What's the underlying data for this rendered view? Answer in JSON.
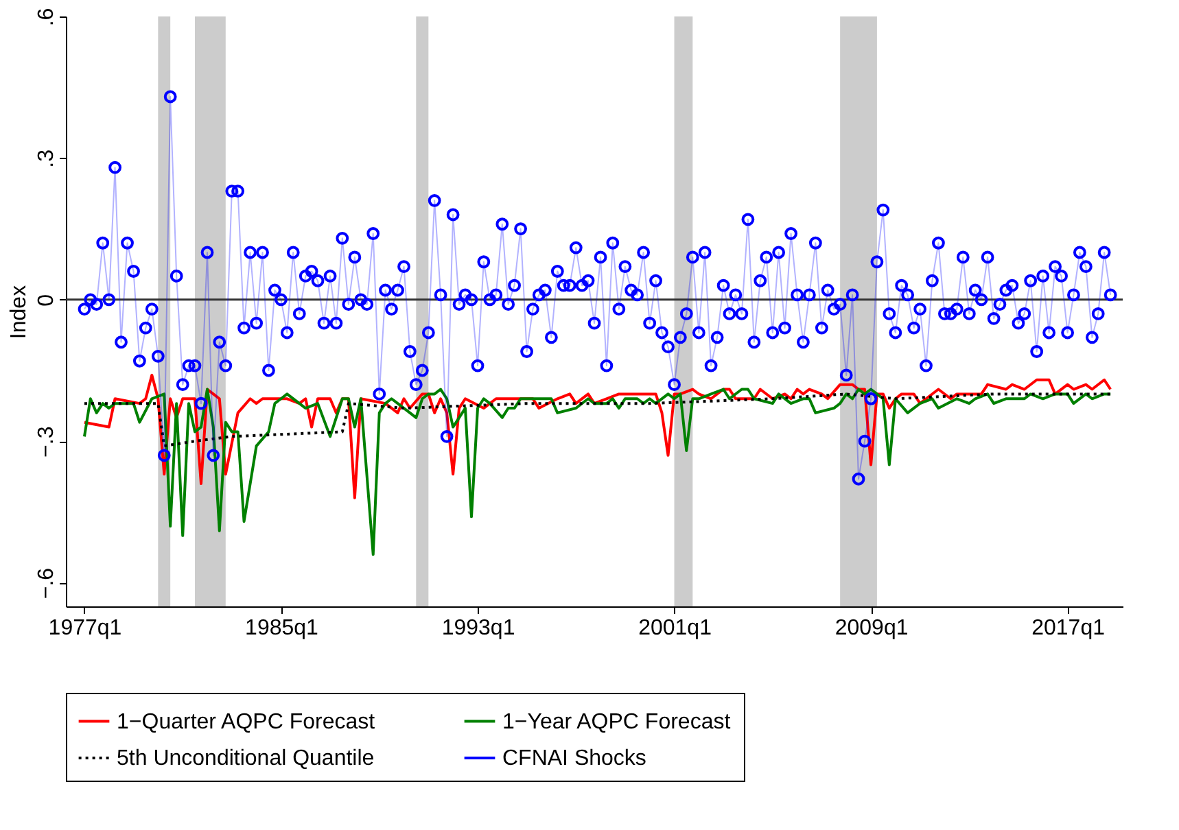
{
  "chart_data": {
    "type": "line",
    "ylabel": "Index",
    "xlim": [
      "1976-04",
      "2019-04"
    ],
    "ylim": [
      -0.65,
      0.6
    ],
    "xticks": [
      {
        "value": "1977-01",
        "label": "1977q1"
      },
      {
        "value": "1985-01",
        "label": "1985q1"
      },
      {
        "value": "1993-01",
        "label": "1993q1"
      },
      {
        "value": "2001-01",
        "label": "2001q1"
      },
      {
        "value": "2009-01",
        "label": "2009q1"
      },
      {
        "value": "2017-01",
        "label": "2017q1"
      }
    ],
    "yticks": [
      {
        "value": -0.6,
        "label": "−.6"
      },
      {
        "value": -0.3,
        "label": "−.3"
      },
      0,
      {
        "value": 0.3,
        "label": ".3"
      },
      {
        "value": 0.6,
        "label": ".6"
      }
    ],
    "grid": false,
    "legend": "bottom",
    "bands": [
      {
        "axis": "x",
        "from": "1980-01",
        "to": "1980-07",
        "color": "#cccccc"
      },
      {
        "axis": "x",
        "from": "1981-07",
        "to": "1982-10",
        "color": "#cccccc"
      },
      {
        "axis": "x",
        "from": "1990-07",
        "to": "1991-01",
        "color": "#cccccc"
      },
      {
        "axis": "x",
        "from": "2001-01",
        "to": "2001-10",
        "color": "#cccccc"
      },
      {
        "axis": "x",
        "from": "2007-10",
        "to": "2009-04",
        "color": "#cccccc"
      }
    ],
    "ref_lines": [
      {
        "axis": "y",
        "value": 0,
        "color": "#333333"
      }
    ],
    "series": [
      {
        "name": "1−Quarter AQPC Forecast",
        "type": "line",
        "color": "#ff0000",
        "x": [
          "1977-01",
          "1978-01",
          "1978-04",
          "1979-04",
          "1979-07",
          "1979-10",
          "1980-01",
          "1980-04",
          "1980-07",
          "1980-10",
          "1981-01",
          "1981-07",
          "1981-10",
          "1982-01",
          "1982-04",
          "1982-07",
          "1982-10",
          "1983-04",
          "1983-10",
          "1984-01",
          "1984-04",
          "1985-04",
          "1985-10",
          "1986-01",
          "1986-04",
          "1986-07",
          "1987-01",
          "1987-04",
          "1987-07",
          "1987-10",
          "1988-01",
          "1988-04",
          "1989-04",
          "1989-10",
          "1990-01",
          "1990-04",
          "1990-10",
          "1991-01",
          "1991-04",
          "1991-07",
          "1991-10",
          "1992-01",
          "1992-04",
          "1992-07",
          "1993-04",
          "1993-10",
          "1994-04",
          "1995-04",
          "1995-07",
          "1996-04",
          "1996-10",
          "1997-01",
          "1997-07",
          "1997-10",
          "1998-04",
          "1998-10",
          "1999-04",
          "1999-10",
          "2000-04",
          "2000-07",
          "2000-10",
          "2001-01",
          "2001-04",
          "2001-10",
          "2002-01",
          "2002-07",
          "2003-01",
          "2003-04",
          "2003-07",
          "2004-04",
          "2004-07",
          "2005-01",
          "2005-07",
          "2005-10",
          "2006-01",
          "2006-04",
          "2006-07",
          "2007-01",
          "2007-04",
          "2007-10",
          "2008-04",
          "2008-07",
          "2008-10",
          "2009-01",
          "2009-04",
          "2009-07",
          "2009-10",
          "2010-01",
          "2010-04",
          "2010-10",
          "2011-01",
          "2011-04",
          "2011-10",
          "2012-04",
          "2012-07",
          "2013-01",
          "2013-04",
          "2013-07",
          "2013-10",
          "2014-07",
          "2014-10",
          "2015-04",
          "2015-10",
          "2016-04",
          "2016-07",
          "2017-01",
          "2017-04",
          "2017-10",
          "2018-01",
          "2018-07",
          "2018-10"
        ],
        "values": [
          -0.26,
          -0.27,
          -0.21,
          -0.22,
          -0.21,
          -0.16,
          -0.21,
          -0.37,
          -0.21,
          -0.25,
          -0.21,
          -0.21,
          -0.39,
          -0.19,
          -0.2,
          -0.21,
          -0.37,
          -0.24,
          -0.21,
          -0.22,
          -0.21,
          -0.21,
          -0.22,
          -0.21,
          -0.27,
          -0.21,
          -0.21,
          -0.24,
          -0.21,
          -0.21,
          -0.42,
          -0.21,
          -0.22,
          -0.24,
          -0.21,
          -0.23,
          -0.2,
          -0.2,
          -0.24,
          -0.21,
          -0.24,
          -0.37,
          -0.23,
          -0.21,
          -0.23,
          -0.21,
          -0.21,
          -0.21,
          -0.23,
          -0.21,
          -0.2,
          -0.22,
          -0.2,
          -0.22,
          -0.21,
          -0.2,
          -0.2,
          -0.2,
          -0.2,
          -0.24,
          -0.33,
          -0.2,
          -0.2,
          -0.19,
          -0.2,
          -0.21,
          -0.19,
          -0.19,
          -0.21,
          -0.21,
          -0.19,
          -0.21,
          -0.2,
          -0.21,
          -0.19,
          -0.2,
          -0.19,
          -0.2,
          -0.21,
          -0.18,
          -0.18,
          -0.19,
          -0.19,
          -0.35,
          -0.2,
          -0.2,
          -0.23,
          -0.21,
          -0.2,
          -0.2,
          -0.22,
          -0.21,
          -0.19,
          -0.21,
          -0.2,
          -0.2,
          -0.2,
          -0.2,
          -0.18,
          -0.19,
          -0.18,
          -0.19,
          -0.17,
          -0.17,
          -0.2,
          -0.18,
          -0.19,
          -0.18,
          -0.19,
          -0.17,
          -0.19
        ]
      },
      {
        "name": "1−Year AQPC Forecast",
        "type": "line",
        "color": "#008000",
        "x": [
          "1977-01",
          "1977-04",
          "1977-07",
          "1977-10",
          "1978-01",
          "1978-04",
          "1978-10",
          "1979-01",
          "1979-04",
          "1979-10",
          "1980-04",
          "1980-07",
          "1980-10",
          "1981-01",
          "1981-04",
          "1981-07",
          "1981-10",
          "1982-01",
          "1982-04",
          "1982-07",
          "1982-10",
          "1983-01",
          "1983-04",
          "1983-07",
          "1984-01",
          "1984-07",
          "1984-10",
          "1985-01",
          "1985-04",
          "1985-10",
          "1986-01",
          "1986-07",
          "1987-01",
          "1987-07",
          "1987-10",
          "1988-01",
          "1988-04",
          "1988-10",
          "1989-01",
          "1989-04",
          "1989-07",
          "1989-10",
          "1990-01",
          "1990-04",
          "1990-07",
          "1990-10",
          "1991-01",
          "1991-04",
          "1991-07",
          "1991-10",
          "1992-01",
          "1992-04",
          "1992-07",
          "1992-10",
          "1993-01",
          "1993-04",
          "1993-07",
          "1994-01",
          "1994-04",
          "1994-07",
          "1994-10",
          "1995-07",
          "1996-01",
          "1996-04",
          "1997-01",
          "1997-07",
          "1997-10",
          "1998-04",
          "1998-07",
          "1998-10",
          "1999-01",
          "1999-07",
          "1999-10",
          "2000-01",
          "2000-04",
          "2000-10",
          "2001-01",
          "2001-04",
          "2001-07",
          "2001-10",
          "2002-01",
          "2002-07",
          "2003-01",
          "2003-04",
          "2003-10",
          "2004-01",
          "2004-04",
          "2005-01",
          "2005-04",
          "2005-10",
          "2006-04",
          "2006-07",
          "2006-10",
          "2007-07",
          "2007-10",
          "2008-01",
          "2008-04",
          "2008-07",
          "2008-10",
          "2009-01",
          "2009-04",
          "2009-07",
          "2009-10",
          "2010-01",
          "2010-07",
          "2011-01",
          "2011-07",
          "2011-10",
          "2012-07",
          "2013-01",
          "2013-04",
          "2013-10",
          "2014-01",
          "2014-07",
          "2015-04",
          "2015-07",
          "2016-01",
          "2016-07",
          "2017-01",
          "2017-04",
          "2017-10",
          "2018-01",
          "2018-07",
          "2018-10"
        ],
        "values": [
          -0.29,
          -0.21,
          -0.24,
          -0.22,
          -0.23,
          -0.22,
          -0.22,
          -0.22,
          -0.26,
          -0.21,
          -0.2,
          -0.48,
          -0.22,
          -0.5,
          -0.22,
          -0.28,
          -0.27,
          -0.19,
          -0.27,
          -0.49,
          -0.26,
          -0.28,
          -0.28,
          -0.47,
          -0.31,
          -0.28,
          -0.22,
          -0.21,
          -0.2,
          -0.22,
          -0.23,
          -0.22,
          -0.29,
          -0.21,
          -0.21,
          -0.27,
          -0.21,
          -0.54,
          -0.24,
          -0.22,
          -0.21,
          -0.22,
          -0.23,
          -0.24,
          -0.25,
          -0.21,
          -0.2,
          -0.2,
          -0.19,
          -0.21,
          -0.27,
          -0.25,
          -0.23,
          -0.46,
          -0.23,
          -0.21,
          -0.22,
          -0.25,
          -0.23,
          -0.23,
          -0.21,
          -0.21,
          -0.21,
          -0.24,
          -0.23,
          -0.21,
          -0.22,
          -0.22,
          -0.21,
          -0.23,
          -0.21,
          -0.21,
          -0.22,
          -0.21,
          -0.22,
          -0.2,
          -0.21,
          -0.2,
          -0.32,
          -0.21,
          -0.21,
          -0.2,
          -0.19,
          -0.21,
          -0.19,
          -0.19,
          -0.21,
          -0.22,
          -0.2,
          -0.22,
          -0.21,
          -0.21,
          -0.24,
          -0.23,
          -0.22,
          -0.2,
          -0.21,
          -0.19,
          -0.2,
          -0.19,
          -0.2,
          -0.21,
          -0.35,
          -0.21,
          -0.24,
          -0.22,
          -0.21,
          -0.23,
          -0.21,
          -0.22,
          -0.21,
          -0.2,
          -0.22,
          -0.21,
          -0.21,
          -0.2,
          -0.21,
          -0.2,
          -0.2,
          -0.22,
          -0.2,
          -0.21,
          -0.2,
          -0.2
        ]
      },
      {
        "name": "5th Unconditional Quantile",
        "type": "line",
        "color": "#000000",
        "line_style": "dotted",
        "x": [
          "1977-01",
          "1980-01",
          "1980-04",
          "1981-07",
          "1983-01",
          "1987-07",
          "1987-10",
          "1990-01",
          "1995-01",
          "2000-01",
          "2005-01",
          "2008-01",
          "2010-01",
          "2014-01",
          "2018-10"
        ],
        "values": [
          -0.22,
          -0.22,
          -0.31,
          -0.3,
          -0.29,
          -0.28,
          -0.22,
          -0.23,
          -0.22,
          -0.22,
          -0.21,
          -0.2,
          -0.21,
          -0.2,
          -0.2
        ]
      },
      {
        "name": "CFNAI Shocks",
        "type": "line",
        "color": "#0000ff",
        "marker": "circle",
        "x": [
          "1977-01",
          "1977-04",
          "1977-07",
          "1977-10",
          "1978-01",
          "1978-04",
          "1978-07",
          "1978-10",
          "1979-01",
          "1979-04",
          "1979-07",
          "1979-10",
          "1980-01",
          "1980-04",
          "1980-07",
          "1980-10",
          "1981-01",
          "1981-04",
          "1981-07",
          "1981-10",
          "1982-01",
          "1982-04",
          "1982-07",
          "1982-10",
          "1983-01",
          "1983-04",
          "1983-07",
          "1983-10",
          "1984-01",
          "1984-04",
          "1984-07",
          "1984-10",
          "1985-01",
          "1985-04",
          "1985-07",
          "1985-10",
          "1986-01",
          "1986-04",
          "1986-07",
          "1986-10",
          "1987-01",
          "1987-04",
          "1987-07",
          "1987-10",
          "1988-01",
          "1988-04",
          "1988-07",
          "1988-10",
          "1989-01",
          "1989-04",
          "1989-07",
          "1989-10",
          "1990-01",
          "1990-04",
          "1990-07",
          "1990-10",
          "1991-01",
          "1991-04",
          "1991-07",
          "1991-10",
          "1992-01",
          "1992-04",
          "1992-07",
          "1992-10",
          "1993-01",
          "1993-04",
          "1993-07",
          "1993-10",
          "1994-01",
          "1994-04",
          "1994-07",
          "1994-10",
          "1995-01",
          "1995-04",
          "1995-07",
          "1995-10",
          "1996-01",
          "1996-04",
          "1996-07",
          "1996-10",
          "1997-01",
          "1997-04",
          "1997-07",
          "1997-10",
          "1998-01",
          "1998-04",
          "1998-07",
          "1998-10",
          "1999-01",
          "1999-04",
          "1999-07",
          "1999-10",
          "2000-01",
          "2000-04",
          "2000-07",
          "2000-10",
          "2001-01",
          "2001-04",
          "2001-07",
          "2001-10",
          "2002-01",
          "2002-04",
          "2002-07",
          "2002-10",
          "2003-01",
          "2003-04",
          "2003-07",
          "2003-10",
          "2004-01",
          "2004-04",
          "2004-07",
          "2004-10",
          "2005-01",
          "2005-04",
          "2005-07",
          "2005-10",
          "2006-01",
          "2006-04",
          "2006-07",
          "2006-10",
          "2007-01",
          "2007-04",
          "2007-07",
          "2007-10",
          "2008-01",
          "2008-04",
          "2008-07",
          "2008-10",
          "2009-01",
          "2009-04",
          "2009-07",
          "2009-10",
          "2010-01",
          "2010-04",
          "2010-07",
          "2010-10",
          "2011-01",
          "2011-04",
          "2011-07",
          "2011-10",
          "2012-01",
          "2012-04",
          "2012-07",
          "2012-10",
          "2013-01",
          "2013-04",
          "2013-07",
          "2013-10",
          "2014-01",
          "2014-04",
          "2014-07",
          "2014-10",
          "2015-01",
          "2015-04",
          "2015-07",
          "2015-10",
          "2016-01",
          "2016-04",
          "2016-07",
          "2016-10",
          "2017-01",
          "2017-04",
          "2017-07",
          "2017-10",
          "2018-01",
          "2018-04",
          "2018-07",
          "2018-10"
        ],
        "values": [
          -0.02,
          0.0,
          -0.01,
          0.12,
          0.0,
          0.28,
          -0.09,
          0.12,
          0.06,
          -0.13,
          -0.06,
          -0.02,
          -0.12,
          -0.33,
          0.43,
          0.05,
          -0.18,
          -0.14,
          -0.14,
          -0.22,
          0.1,
          -0.33,
          -0.09,
          -0.14,
          0.23,
          0.23,
          -0.06,
          0.1,
          -0.05,
          0.1,
          -0.15,
          0.02,
          0.0,
          -0.07,
          0.1,
          -0.03,
          0.05,
          0.06,
          0.04,
          -0.05,
          0.05,
          -0.05,
          0.13,
          -0.01,
          0.09,
          0.0,
          -0.01,
          0.14,
          -0.2,
          0.02,
          -0.02,
          0.02,
          0.07,
          -0.11,
          -0.18,
          -0.15,
          -0.07,
          0.21,
          0.01,
          -0.29,
          0.18,
          -0.01,
          0.01,
          0.0,
          -0.14,
          0.08,
          0.0,
          0.01,
          0.16,
          -0.01,
          0.03,
          0.15,
          -0.11,
          -0.02,
          0.01,
          0.02,
          -0.08,
          0.06,
          0.03,
          0.03,
          0.11,
          0.03,
          0.04,
          -0.05,
          0.09,
          -0.14,
          0.12,
          -0.02,
          0.07,
          0.02,
          0.01,
          0.1,
          -0.05,
          0.04,
          -0.07,
          -0.1,
          -0.18,
          -0.08,
          -0.03,
          0.09,
          -0.07,
          0.1,
          -0.14,
          -0.08,
          0.03,
          -0.03,
          0.01,
          -0.03,
          0.17,
          -0.09,
          0.04,
          0.09,
          -0.07,
          0.1,
          -0.06,
          0.14,
          0.01,
          -0.09,
          0.01,
          0.12,
          -0.06,
          0.02,
          -0.02,
          -0.01,
          -0.16,
          0.01,
          -0.38,
          -0.3,
          -0.21,
          0.08,
          0.19,
          -0.03,
          -0.07,
          0.03,
          0.01,
          -0.06,
          -0.02,
          -0.14,
          0.04,
          0.12,
          -0.03,
          -0.03,
          -0.02,
          0.09,
          -0.03,
          0.02,
          0.0,
          0.09,
          -0.04,
          -0.01,
          0.02,
          0.03,
          -0.05,
          -0.03,
          0.04,
          -0.11,
          0.05,
          -0.07,
          0.07,
          0.05,
          -0.07,
          0.01,
          0.1,
          0.07,
          -0.08,
          -0.03,
          0.1,
          0.01
        ]
      }
    ]
  }
}
